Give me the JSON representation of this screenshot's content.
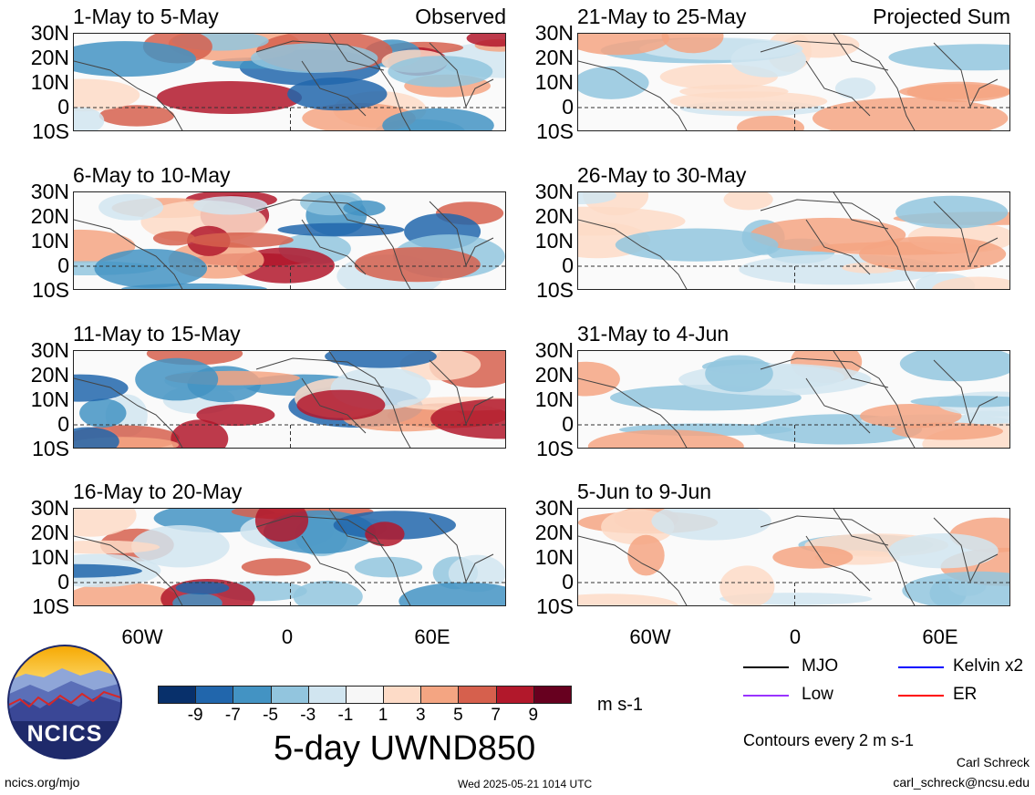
{
  "panels_left": [
    {
      "title": "1-May to 5-May",
      "note": "Observed"
    },
    {
      "title": "6-May to 10-May",
      "note": ""
    },
    {
      "title": "11-May to 15-May",
      "note": ""
    },
    {
      "title": "16-May to 20-May",
      "note": ""
    }
  ],
  "panels_right": [
    {
      "title": "21-May to 25-May",
      "note": "Projected Sum"
    },
    {
      "title": "26-May to 30-May",
      "note": ""
    },
    {
      "title": "31-May to 4-Jun",
      "note": ""
    },
    {
      "title": "5-Jun to 9-Jun",
      "note": ""
    }
  ],
  "lat_labels": [
    "30N",
    "20N",
    "10N",
    "0",
    "10S"
  ],
  "lon_labels": [
    "60W",
    "0",
    "60E"
  ],
  "colorbar": {
    "colors": [
      "#08306b",
      "#2166ac",
      "#4393c3",
      "#92c5de",
      "#d1e5f0",
      "#f7f7f7",
      "#fddbc7",
      "#f4a582",
      "#d6604d",
      "#b2182b",
      "#67001f"
    ],
    "ticks": [
      "-9",
      "-7",
      "-5",
      "-3",
      "-1",
      "1",
      "3",
      "5",
      "7",
      "9"
    ],
    "units": "m s-1"
  },
  "main_title": "5-day UWND850",
  "legend": {
    "items": [
      {
        "label": "MJO",
        "color": "#000000"
      },
      {
        "label": "Kelvin x2",
        "color": "#0000ff"
      },
      {
        "label": "Low",
        "color": "#9933ff"
      },
      {
        "label": "ER",
        "color": "#ff0000"
      }
    ],
    "contour_note": "Contours every 2 m s-1"
  },
  "logo": {
    "text": "NCICS"
  },
  "footer": {
    "left": "ncics.org/mjo",
    "center": "Wed 2025-05-21 1014 UTC",
    "right_name": "Carl Schreck",
    "right_email": "carl_schreck@ncsu.edu"
  }
}
